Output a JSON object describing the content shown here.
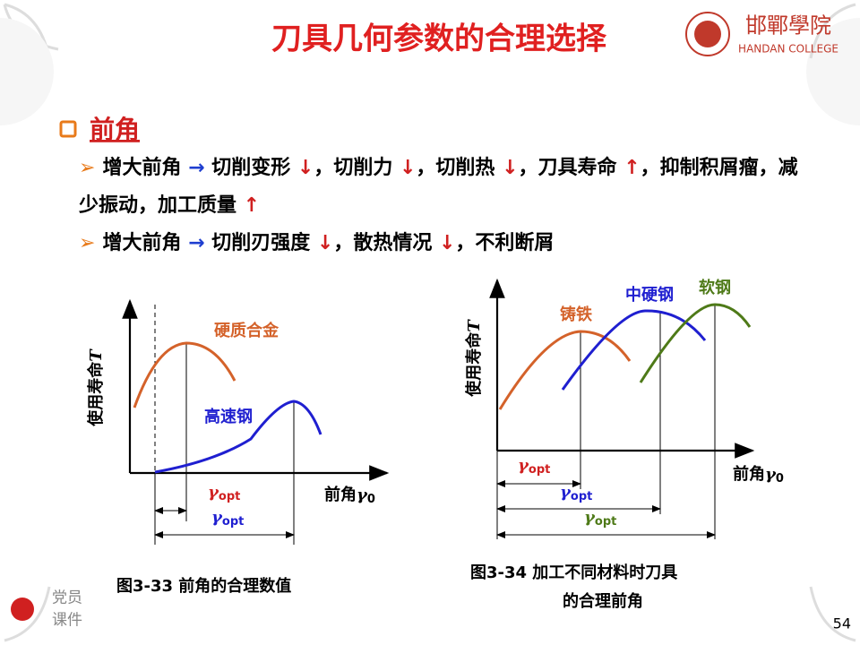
{
  "header": {
    "title": "刀具几何参数的合理选择",
    "logo_name": "邯鄲學院",
    "logo_subtitle": "HANDAN COLLEGE"
  },
  "section": {
    "heading": "前角",
    "bullets": [
      [
        {
          "text": "增大前角 "
        },
        {
          "text": "→",
          "color": "#1f3fd0"
        },
        {
          "text": " 切削变形 "
        },
        {
          "text": "↓",
          "color": "#d02020"
        },
        {
          "text": "，切削力 "
        },
        {
          "text": "↓",
          "color": "#d02020"
        },
        {
          "text": "，切削热 "
        },
        {
          "text": "↓",
          "color": "#d02020"
        },
        {
          "text": "，刀具寿命 "
        },
        {
          "text": "↑",
          "color": "#d02020"
        },
        {
          "text": "，抑制积屑瘤，减少振动，加工质量 "
        },
        {
          "text": "↑",
          "color": "#d02020"
        }
      ],
      [
        {
          "text": "增大前角 "
        },
        {
          "text": "→",
          "color": "#1f3fd0"
        },
        {
          "text": " 切削刃强度 "
        },
        {
          "text": "↓",
          "color": "#d02020"
        },
        {
          "text": "，散热情况 "
        },
        {
          "text": "↓",
          "color": "#d02020"
        },
        {
          "text": "，不利断屑"
        }
      ]
    ]
  },
  "figures": [
    {
      "y_label": {
        "text": "使用寿命",
        "symbol": "T"
      },
      "x_label": {
        "text": "前角",
        "symbol": "γ",
        "subscript": "0"
      },
      "curves": [
        {
          "label": "硬质合金",
          "color": "#d4622a"
        },
        {
          "label": "高速钢",
          "color": "#1f1fd0"
        }
      ],
      "optima": [
        {
          "symbol": "γ",
          "subscript": "opt",
          "color": "#d02020"
        },
        {
          "symbol": "γ",
          "subscript": "opt",
          "color": "#1f1fd0"
        }
      ],
      "caption": [
        "图3-33   前角的合理数值"
      ]
    },
    {
      "y_label": {
        "text": "使用寿命",
        "symbol": "T"
      },
      "x_label": {
        "text": "前角",
        "symbol": "γ",
        "subscript": "0"
      },
      "curves": [
        {
          "label": "铸铁",
          "color": "#d4622a"
        },
        {
          "label": "中硬钢",
          "color": "#1f1fd0"
        },
        {
          "label": "软钢",
          "color": "#4e7a18"
        }
      ],
      "optima": [
        {
          "symbol": "γ",
          "subscript": "opt",
          "color": "#d02020"
        },
        {
          "symbol": "γ",
          "subscript": "opt",
          "color": "#1f1fd0"
        },
        {
          "symbol": "γ",
          "subscript": "opt",
          "color": "#4e7a18"
        }
      ],
      "caption": [
        "图3-34   加工不同材料时刀具",
        "的合理前角"
      ]
    }
  ],
  "footer": {
    "badge": [
      "党员",
      "课件"
    ],
    "page": "54"
  }
}
